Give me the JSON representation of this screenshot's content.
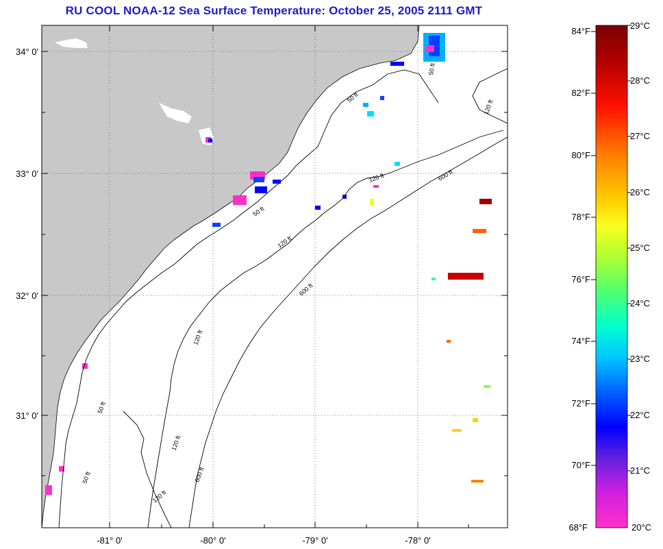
{
  "title": "RU COOL  NOAA-12  Sea Surface Temperature:  October 25, 2005 2111 GMT",
  "map": {
    "latitude_labels": [
      "34° 0'",
      "33° 0'",
      "32° 0'",
      "31° 0'"
    ],
    "longitude_labels": [
      "-81° 0'",
      "-80° 0'",
      "-79° 0'",
      "-78° 0'"
    ],
    "contour_labels": [
      "50 ft",
      "120 ft",
      "600 ft"
    ],
    "land_color": "#c8c8c8",
    "ocean_color": "#ffffff"
  },
  "colorbar": {
    "fahrenheit_labels": [
      "84°F",
      "82°F",
      "80°F",
      "78°F",
      "76°F",
      "74°F",
      "72°F",
      "70°F",
      "68°F"
    ],
    "celsius_labels": [
      "29°C",
      "28°C",
      "27°C",
      "26°C",
      "25°C",
      "24°C",
      "23°C",
      "22°C",
      "21°C",
      "20°C"
    ],
    "colors": [
      "#7a0000",
      "#c80000",
      "#ff2000",
      "#ff8000",
      "#ffd000",
      "#f0ff20",
      "#90ff40",
      "#30ff90",
      "#00ffe0",
      "#00b0ff",
      "#1040ff",
      "#0000ff",
      "#8020e0",
      "#ff20d0",
      "#ff40c0"
    ]
  }
}
